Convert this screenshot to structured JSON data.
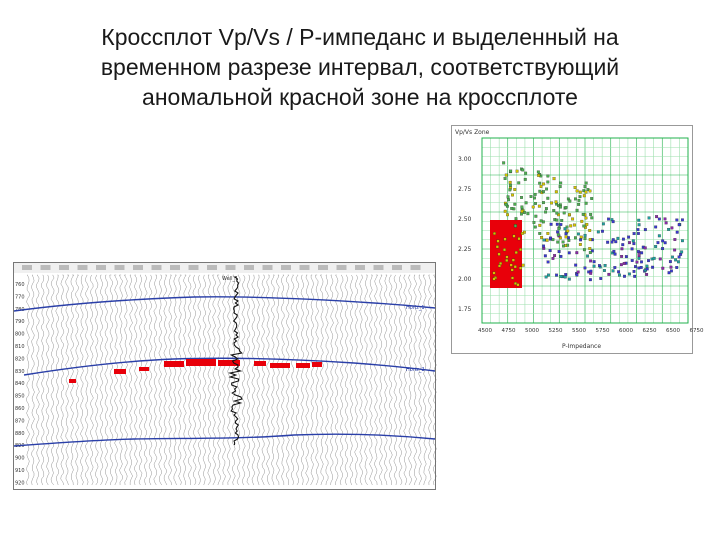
{
  "title": {
    "line1": "Кроссплот Vp/Vs / P-импеданс и выделенный на",
    "line2": "временном разрезе интервал, соответствующий",
    "line3": "аномальной красной зоне на кроссплоте"
  },
  "colors": {
    "anomaly": "#e8000a",
    "horizon": "#2a3fa8",
    "grid": "#22b14c",
    "scatter_green": "#4caf50",
    "scatter_yellow": "#d4c400",
    "scatter_blue": "#3a3ad0",
    "scatter_purple": "#8a2aa8"
  },
  "crossplot": {
    "ylabel": "Vp/Vs Zone",
    "xlabel": "P-Impedance",
    "y_ticks": [
      "3.00",
      "2.75",
      "2.50",
      "2.25",
      "2.00",
      "1.75"
    ],
    "x_ticks": [
      "4500",
      "4750",
      "5000",
      "5250",
      "5500",
      "5750",
      "6000",
      "6250",
      "6500",
      "6750"
    ]
  },
  "seismic": {
    "time_ticks": [
      "760",
      "770",
      "780",
      "790",
      "800",
      "810",
      "820",
      "830",
      "840",
      "850",
      "860",
      "870",
      "880",
      "890",
      "900",
      "910",
      "920"
    ],
    "trace_label": "Well_1",
    "horizon_labels": [
      "Horiz_1",
      "Horiz_2"
    ]
  }
}
